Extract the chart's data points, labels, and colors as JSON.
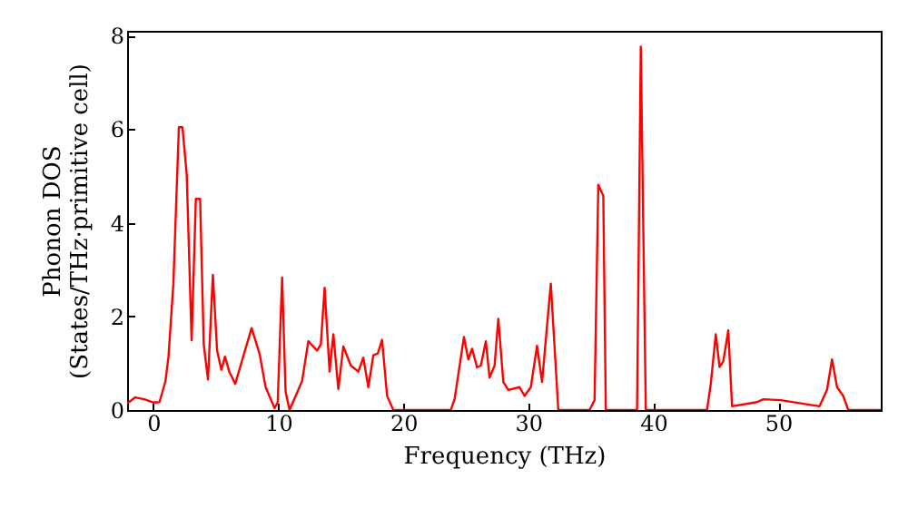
{
  "chart_data": {
    "type": "line",
    "xlabel": "Frequency (THz)",
    "ylabel": "Phonon DOS\n(States/THz·primitive cell)",
    "xlim": [
      -2.1,
      58.2
    ],
    "ylim": [
      0,
      8.1
    ],
    "xticks": [
      0,
      10,
      20,
      30,
      40,
      50
    ],
    "yticks": [
      0,
      2,
      4,
      6,
      8
    ],
    "grid": false,
    "marker": "none",
    "line_style": "solid",
    "x": [
      -2.1,
      -1.94,
      -1.46,
      -0.73,
      0,
      0.49,
      0.97,
      1.21,
      1.6,
      2.04,
      2.33,
      2.67,
      3.06,
      3.4,
      3.74,
      4.03,
      4.37,
      4.76,
      5.1,
      5.44,
      5.73,
      6.07,
      6.55,
      7.86,
      8.5,
      8.98,
      9.7,
      9.95,
      10.3,
      10.58,
      10.9,
      11.9,
      12.4,
      13.1,
      13.4,
      13.7,
      14.1,
      14.4,
      14.8,
      15.2,
      15.8,
      16.4,
      16.8,
      17.2,
      17.6,
      17.96,
      18.3,
      18.7,
      19.2,
      23.8,
      24.1,
      24.85,
      25.2,
      25.5,
      25.9,
      26.2,
      26.6,
      26.9,
      27.3,
      27.6,
      28.0,
      28.4,
      29.3,
      29.7,
      30.2,
      30.7,
      31.1,
      31.8,
      32.4,
      34.9,
      35.3,
      35.6,
      36.0,
      36.2,
      38.7,
      39.0,
      39.4,
      44.3,
      44.6,
      45.0,
      45.3,
      45.6,
      46.0,
      46.3,
      48.3,
      48.8,
      50.2,
      53.3,
      53.9,
      54.3,
      54.7,
      55.2,
      55.6,
      58.2
    ],
    "series": [
      {
        "color": "#ff0000",
        "values": [
          0.15,
          0.17,
          0.27,
          0.23,
          0.16,
          0.17,
          0.62,
          1.14,
          2.7,
          6.04,
          6.04,
          5.03,
          1.49,
          4.51,
          4.51,
          1.4,
          0.65,
          2.89,
          1.27,
          0.86,
          1.14,
          0.82,
          0.56,
          1.75,
          1.2,
          0.49,
          0.04,
          0.17,
          2.83,
          0.39,
          0,
          0.62,
          1.47,
          1.27,
          1.4,
          2.61,
          0.82,
          1.62,
          0.45,
          1.36,
          0.95,
          0.82,
          1.12,
          0.49,
          1.17,
          1.21,
          1.5,
          0.3,
          0,
          0,
          0.23,
          1.56,
          1.08,
          1.31,
          0.91,
          0.95,
          1.47,
          0.69,
          0.95,
          1.95,
          0.6,
          0.43,
          0.49,
          0.3,
          0.49,
          1.37,
          0.6,
          2.7,
          0,
          0,
          0.21,
          4.81,
          4.58,
          0,
          0,
          7.76,
          0,
          0,
          0.56,
          1.62,
          0.92,
          1.04,
          1.7,
          0.08,
          0.17,
          0.23,
          0.21,
          0.08,
          0.43,
          1.08,
          0.49,
          0.3,
          0,
          0
        ]
      }
    ]
  }
}
